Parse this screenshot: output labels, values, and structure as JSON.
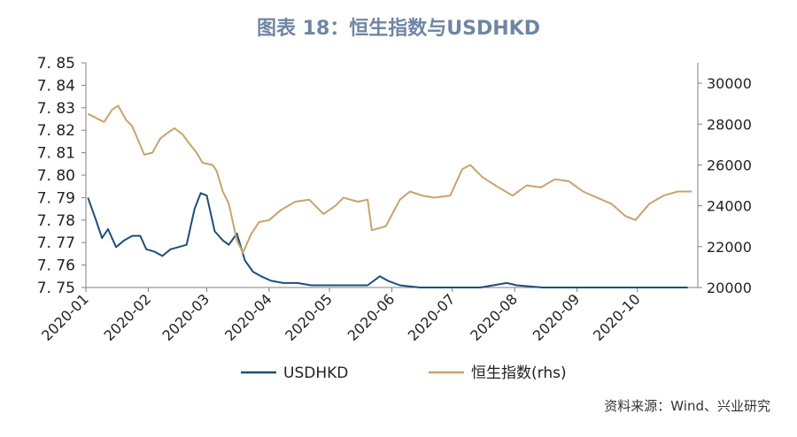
{
  "title": "图表 18：恒生指数与USDHKD",
  "source": "资料来源：Wind、兴业研究",
  "chart_data": {
    "type": "line",
    "title": "图表 18：恒生指数与USDHKD",
    "x_ticks": [
      "2020-01",
      "2020-02",
      "2020-03",
      "2020-04",
      "2020-05",
      "2020-06",
      "2020-07",
      "2020-08",
      "2020-09",
      "2020-10"
    ],
    "y_left": {
      "min": 7.75,
      "max": 7.85,
      "ticks": [
        "7. 75",
        "7. 76",
        "7. 77",
        "7. 78",
        "7. 79",
        "7. 80",
        "7. 81",
        "7. 82",
        "7. 83",
        "7. 84",
        "7. 85"
      ]
    },
    "y_right": {
      "min": 20000,
      "max": 31000,
      "ticks": [
        "20000",
        "22000",
        "24000",
        "26000",
        "28000",
        "30000"
      ]
    },
    "grid": false,
    "legend_position": "bottom",
    "series": [
      {
        "name": "USDHKD",
        "axis": "left",
        "color": "#1f4e79",
        "x": [
          "2020-01-02",
          "2020-01-06",
          "2020-01-09",
          "2020-01-12",
          "2020-01-16",
          "2020-01-20",
          "2020-01-24",
          "2020-01-28",
          "2020-01-31",
          "2020-02-04",
          "2020-02-08",
          "2020-02-12",
          "2020-02-16",
          "2020-02-20",
          "2020-02-24",
          "2020-02-27",
          "2020-03-01",
          "2020-03-05",
          "2020-03-09",
          "2020-03-12",
          "2020-03-16",
          "2020-03-20",
          "2020-03-24",
          "2020-03-28",
          "2020-04-02",
          "2020-04-08",
          "2020-04-15",
          "2020-04-22",
          "2020-05-01",
          "2020-05-10",
          "2020-05-20",
          "2020-05-26",
          "2020-05-30",
          "2020-06-05",
          "2020-06-15",
          "2020-07-01",
          "2020-07-15",
          "2020-07-28",
          "2020-08-02",
          "2020-08-15",
          "2020-09-01",
          "2020-09-20",
          "2020-10-01",
          "2020-10-26"
        ],
        "y": [
          7.79,
          7.78,
          7.772,
          7.776,
          7.768,
          7.771,
          7.773,
          7.773,
          7.767,
          7.766,
          7.764,
          7.767,
          7.768,
          7.769,
          7.785,
          7.792,
          7.791,
          7.775,
          7.771,
          7.769,
          7.774,
          7.762,
          7.757,
          7.755,
          7.753,
          7.752,
          7.752,
          7.751,
          7.751,
          7.751,
          7.751,
          7.755,
          7.753,
          7.751,
          7.75,
          7.75,
          7.75,
          7.752,
          7.751,
          7.75,
          7.75,
          7.75,
          7.75,
          7.75
        ]
      },
      {
        "name": "恒生指数(rhs)",
        "axis": "right",
        "color": "#c8a46b",
        "x": [
          "2020-01-02",
          "2020-01-06",
          "2020-01-10",
          "2020-01-14",
          "2020-01-17",
          "2020-01-21",
          "2020-01-24",
          "2020-01-30",
          "2020-02-03",
          "2020-02-07",
          "2020-02-11",
          "2020-02-14",
          "2020-02-18",
          "2020-02-21",
          "2020-02-25",
          "2020-02-28",
          "2020-03-04",
          "2020-03-06",
          "2020-03-09",
          "2020-03-12",
          "2020-03-16",
          "2020-03-19",
          "2020-03-23",
          "2020-03-27",
          "2020-04-01",
          "2020-04-07",
          "2020-04-14",
          "2020-04-21",
          "2020-04-28",
          "2020-05-04",
          "2020-05-08",
          "2020-05-15",
          "2020-05-20",
          "2020-05-22",
          "2020-05-29",
          "2020-06-05",
          "2020-06-10",
          "2020-06-16",
          "2020-06-22",
          "2020-06-30",
          "2020-07-06",
          "2020-07-10",
          "2020-07-16",
          "2020-07-24",
          "2020-07-31",
          "2020-08-07",
          "2020-08-14",
          "2020-08-21",
          "2020-08-28",
          "2020-09-04",
          "2020-09-11",
          "2020-09-18",
          "2020-09-25",
          "2020-09-30",
          "2020-10-07",
          "2020-10-14",
          "2020-10-21",
          "2020-10-28"
        ],
        "y": [
          28500,
          28300,
          28100,
          28700,
          28900,
          28200,
          27900,
          26500,
          26600,
          27300,
          27600,
          27800,
          27500,
          27100,
          26600,
          26100,
          26000,
          25700,
          24700,
          24100,
          22300,
          21700,
          22600,
          23200,
          23300,
          23800,
          24200,
          24300,
          23600,
          24000,
          24400,
          24200,
          24300,
          22800,
          23000,
          24300,
          24700,
          24500,
          24400,
          24500,
          25800,
          26000,
          25400,
          24900,
          24500,
          25000,
          24900,
          25300,
          25200,
          24700,
          24400,
          24100,
          23500,
          23300,
          24100,
          24500,
          24700,
          24700
        ]
      }
    ]
  }
}
